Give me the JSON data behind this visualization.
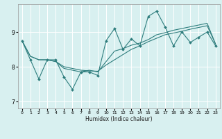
{
  "title": "",
  "xlabel": "Humidex (Indice chaleur)",
  "xlim": [
    -0.5,
    23.5
  ],
  "ylim": [
    6.8,
    9.8
  ],
  "yticks": [
    7,
    8,
    9
  ],
  "xticks": [
    0,
    1,
    2,
    3,
    4,
    5,
    6,
    7,
    8,
    9,
    10,
    11,
    12,
    13,
    14,
    15,
    16,
    17,
    18,
    19,
    20,
    21,
    22,
    23
  ],
  "bg_color": "#d8f0f0",
  "grid_color": "#ffffff",
  "line_color": "#2e7d7d",
  "lines": [
    {
      "x": [
        0,
        1,
        2,
        3,
        4,
        5,
        6,
        7,
        8,
        9,
        10,
        11,
        12,
        13,
        14,
        15,
        16,
        17,
        18,
        19,
        20,
        21,
        22,
        23
      ],
      "y": [
        8.75,
        8.2,
        7.65,
        8.2,
        8.2,
        7.7,
        7.35,
        7.85,
        7.85,
        7.75,
        8.75,
        9.1,
        8.5,
        8.8,
        8.6,
        9.45,
        9.6,
        9.15,
        8.6,
        9.0,
        8.7,
        8.85,
        9.0,
        8.6
      ],
      "marker": true
    },
    {
      "x": [
        0,
        1,
        2,
        3,
        4,
        5,
        6,
        7,
        8,
        9,
        10,
        11,
        12,
        13,
        14,
        15,
        16,
        17,
        18,
        19,
        20,
        21,
        22,
        23
      ],
      "y": [
        8.75,
        8.3,
        8.2,
        8.2,
        8.15,
        8.0,
        7.95,
        7.9,
        7.88,
        7.87,
        8.05,
        8.2,
        8.35,
        8.5,
        8.6,
        8.72,
        8.82,
        8.92,
        8.97,
        9.02,
        9.08,
        9.13,
        9.18,
        8.65
      ],
      "marker": false
    },
    {
      "x": [
        0,
        1,
        2,
        3,
        4,
        5,
        6,
        7,
        8,
        9,
        10,
        11,
        12,
        13,
        14,
        15,
        16,
        17,
        18,
        19,
        20,
        21,
        22,
        23
      ],
      "y": [
        8.75,
        8.3,
        8.2,
        8.2,
        8.15,
        7.95,
        7.9,
        7.85,
        7.9,
        7.85,
        8.15,
        8.45,
        8.52,
        8.62,
        8.68,
        8.78,
        8.92,
        8.98,
        9.05,
        9.1,
        9.15,
        9.2,
        9.25,
        8.65
      ],
      "marker": false
    }
  ]
}
